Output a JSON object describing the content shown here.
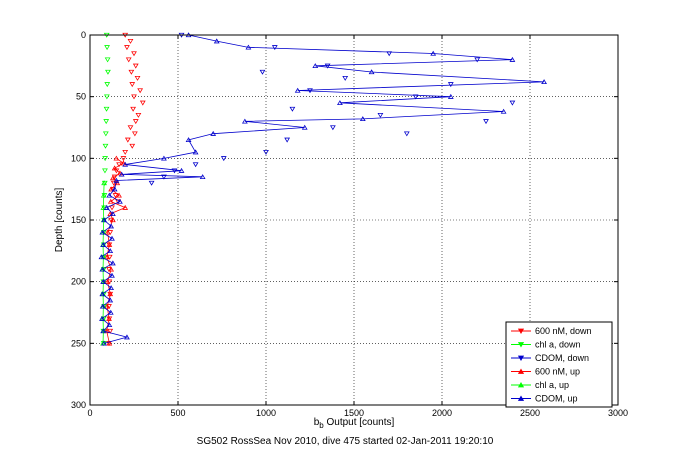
{
  "chart_data": {
    "type": "scatter",
    "title": "",
    "xlabel_main": "b",
    "xlabel_sub": "b",
    "xlabel_rest": " Output [counts]",
    "ylabel": "Depth [counts]",
    "footer": "SG502 RossSea Nov 2010, dive 475 started 02-Jan-2011 19:20:10",
    "xlim": [
      0,
      3000
    ],
    "ylim": [
      0,
      300
    ],
    "y_reversed": true,
    "grid": true,
    "legend_position": "bottom-right",
    "x_ticks": [
      0,
      500,
      1000,
      1500,
      2000,
      2500,
      3000
    ],
    "x_tick_labels": [
      "0",
      "500",
      "1000",
      "1500",
      "2000",
      "2500",
      "3000"
    ],
    "y_ticks": [
      0,
      50,
      100,
      150,
      200,
      250,
      300
    ],
    "y_tick_labels": [
      "0",
      "50",
      "100",
      "150",
      "200",
      "250",
      "300"
    ],
    "series": [
      {
        "name": "600 nM, down",
        "color": "#ff0000",
        "marker": "triangle-down",
        "line": false,
        "points": [
          [
            200,
            0
          ],
          [
            230,
            5
          ],
          [
            210,
            10
          ],
          [
            250,
            15
          ],
          [
            220,
            20
          ],
          [
            260,
            25
          ],
          [
            235,
            30
          ],
          [
            270,
            35
          ],
          [
            240,
            40
          ],
          [
            285,
            45
          ],
          [
            250,
            50
          ],
          [
            300,
            55
          ],
          [
            245,
            60
          ],
          [
            275,
            65
          ],
          [
            260,
            70
          ],
          [
            230,
            75
          ],
          [
            255,
            80
          ],
          [
            215,
            85
          ],
          [
            240,
            90
          ],
          [
            200,
            95
          ],
          [
            190,
            100
          ],
          [
            165,
            105
          ],
          [
            150,
            110
          ],
          [
            140,
            115
          ],
          [
            135,
            120
          ],
          [
            130,
            125
          ],
          [
            145,
            130
          ],
          [
            160,
            135
          ],
          [
            125,
            140
          ],
          [
            120,
            150
          ],
          [
            115,
            160
          ],
          [
            110,
            170
          ],
          [
            112,
            180
          ],
          [
            108,
            190
          ],
          [
            110,
            200
          ],
          [
            115,
            210
          ],
          [
            108,
            220
          ],
          [
            110,
            230
          ],
          [
            115,
            240
          ],
          [
            108,
            250
          ]
        ]
      },
      {
        "name": "chl a, down",
        "color": "#00ff00",
        "marker": "triangle-down",
        "line": false,
        "points": [
          [
            95,
            0
          ],
          [
            97,
            10
          ],
          [
            100,
            20
          ],
          [
            102,
            30
          ],
          [
            98,
            40
          ],
          [
            96,
            50
          ],
          [
            94,
            60
          ],
          [
            92,
            70
          ],
          [
            90,
            80
          ],
          [
            88,
            90
          ],
          [
            86,
            100
          ],
          [
            85,
            110
          ],
          [
            84,
            120
          ],
          [
            82,
            130
          ],
          [
            80,
            140
          ],
          [
            80,
            150
          ],
          [
            78,
            160
          ],
          [
            78,
            170
          ],
          [
            76,
            180
          ],
          [
            78,
            190
          ],
          [
            76,
            200
          ],
          [
            78,
            210
          ],
          [
            80,
            220
          ],
          [
            78,
            230
          ],
          [
            76,
            240
          ],
          [
            78,
            250
          ]
        ]
      },
      {
        "name": "CDOM, down",
        "color": "#0000cc",
        "marker": "triangle-down",
        "line": false,
        "points": [
          [
            520,
            0
          ],
          [
            1050,
            10
          ],
          [
            1700,
            15
          ],
          [
            2200,
            20
          ],
          [
            1350,
            25
          ],
          [
            980,
            30
          ],
          [
            1450,
            35
          ],
          [
            2050,
            40
          ],
          [
            1250,
            45
          ],
          [
            1850,
            50
          ],
          [
            2400,
            55
          ],
          [
            1150,
            60
          ],
          [
            1650,
            65
          ],
          [
            2250,
            70
          ],
          [
            1380,
            75
          ],
          [
            1800,
            80
          ],
          [
            1120,
            85
          ],
          [
            1000,
            95
          ],
          [
            760,
            100
          ],
          [
            600,
            105
          ],
          [
            480,
            110
          ],
          [
            420,
            115
          ],
          [
            350,
            120
          ]
        ]
      },
      {
        "name": "600 nM, up",
        "color": "#ff0000",
        "marker": "triangle-up",
        "line": true,
        "points": [
          [
            150,
            100
          ],
          [
            190,
            104
          ],
          [
            140,
            108
          ],
          [
            170,
            112
          ],
          [
            130,
            116
          ],
          [
            155,
            120
          ],
          [
            120,
            125
          ],
          [
            165,
            130
          ],
          [
            118,
            135
          ],
          [
            200,
            140
          ],
          [
            115,
            145
          ],
          [
            130,
            150
          ],
          [
            100,
            160
          ],
          [
            110,
            170
          ],
          [
            96,
            180
          ],
          [
            120,
            190
          ],
          [
            100,
            200
          ],
          [
            115,
            210
          ],
          [
            98,
            220
          ],
          [
            108,
            230
          ],
          [
            95,
            240
          ],
          [
            110,
            250
          ]
        ]
      },
      {
        "name": "chl a, up",
        "color": "#00ff00",
        "marker": "triangle-up",
        "line": true,
        "points": [
          [
            80,
            120
          ],
          [
            78,
            130
          ],
          [
            76,
            140
          ],
          [
            78,
            150
          ],
          [
            76,
            160
          ],
          [
            74,
            170
          ],
          [
            76,
            180
          ],
          [
            74,
            190
          ],
          [
            76,
            200
          ],
          [
            74,
            210
          ],
          [
            76,
            220
          ],
          [
            74,
            230
          ],
          [
            76,
            240
          ],
          [
            74,
            250
          ]
        ]
      },
      {
        "name": "CDOM, up",
        "color": "#0000cc",
        "marker": "triangle-up",
        "line": true,
        "points": [
          [
            560,
            0
          ],
          [
            720,
            5
          ],
          [
            900,
            10
          ],
          [
            1950,
            15
          ],
          [
            2400,
            20
          ],
          [
            1280,
            25
          ],
          [
            1600,
            30
          ],
          [
            2580,
            38
          ],
          [
            1180,
            45
          ],
          [
            2050,
            50
          ],
          [
            1420,
            55
          ],
          [
            2350,
            62
          ],
          [
            1550,
            68
          ],
          [
            880,
            70
          ],
          [
            1220,
            75
          ],
          [
            700,
            80
          ],
          [
            560,
            85
          ],
          [
            600,
            95
          ],
          [
            420,
            100
          ],
          [
            200,
            105
          ],
          [
            520,
            110
          ],
          [
            180,
            113
          ],
          [
            640,
            115
          ],
          [
            150,
            118
          ],
          [
            140,
            125
          ],
          [
            110,
            130
          ],
          [
            170,
            135
          ],
          [
            95,
            140
          ],
          [
            130,
            145
          ],
          [
            80,
            150
          ],
          [
            120,
            155
          ],
          [
            70,
            160
          ],
          [
            125,
            165
          ],
          [
            75,
            170
          ],
          [
            115,
            175
          ],
          [
            65,
            180
          ],
          [
            130,
            185
          ],
          [
            70,
            190
          ],
          [
            125,
            195
          ],
          [
            75,
            200
          ],
          [
            120,
            205
          ],
          [
            70,
            210
          ],
          [
            115,
            215
          ],
          [
            72,
            220
          ],
          [
            118,
            225
          ],
          [
            68,
            230
          ],
          [
            110,
            235
          ],
          [
            75,
            240
          ],
          [
            210,
            245
          ],
          [
            80,
            250
          ]
        ]
      }
    ]
  }
}
